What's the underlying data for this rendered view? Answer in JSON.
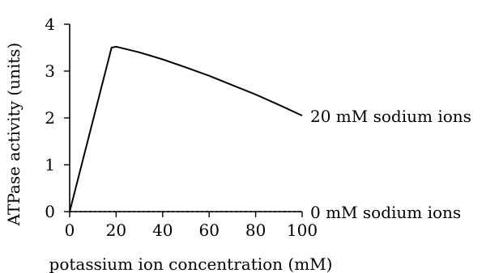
{
  "chart_data": {
    "type": "line",
    "title": "",
    "xlabel": "potassium ion concentration (mM)",
    "ylabel": "ATPase activity (units)",
    "xlim": [
      0,
      100
    ],
    "ylim": [
      0,
      4
    ],
    "xticks": [
      0,
      20,
      40,
      60,
      80,
      100
    ],
    "yticks": [
      0,
      1,
      2,
      3,
      4
    ],
    "grid": false,
    "legend": "none",
    "series": [
      {
        "name": "20 mM sodium ions",
        "style": "solid",
        "color": "#000000",
        "x": [
          0,
          18,
          20,
          30,
          40,
          50,
          60,
          70,
          80,
          90,
          100
        ],
        "y": [
          0,
          3.5,
          3.52,
          3.4,
          3.25,
          3.08,
          2.9,
          2.7,
          2.5,
          2.28,
          2.05
        ]
      },
      {
        "name": "0 mM sodium ions",
        "style": "dashed",
        "color": "#000000",
        "x": [
          0,
          100
        ],
        "y": [
          0,
          0
        ]
      }
    ]
  }
}
